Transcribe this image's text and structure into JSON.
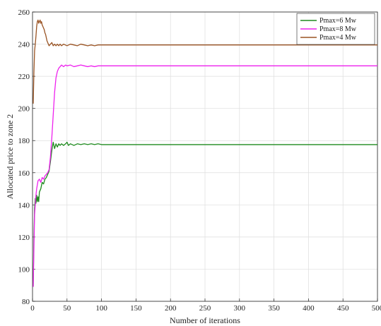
{
  "chart_data": {
    "type": "line",
    "title": "",
    "xlabel": "Number of iterations",
    "ylabel": "Allocated price to zone 2",
    "xlim": [
      0,
      500
    ],
    "ylim": [
      80,
      260
    ],
    "xticks": [
      "0",
      "50",
      "100",
      "150",
      "200",
      "250",
      "300",
      "350",
      "400",
      "450",
      "500"
    ],
    "yticks": [
      "80",
      "100",
      "120",
      "140",
      "160",
      "180",
      "200",
      "220",
      "240",
      "260"
    ],
    "grid": true,
    "legend_position": "top-right",
    "series": [
      {
        "name": "Pmax=6 Mw",
        "color": "#1e8a1e",
        "points": [
          [
            1,
            89
          ],
          [
            2,
            120
          ],
          [
            3,
            138
          ],
          [
            4,
            144
          ],
          [
            5,
            141
          ],
          [
            6,
            146
          ],
          [
            7,
            142
          ],
          [
            8,
            145
          ],
          [
            9,
            142
          ],
          [
            10,
            148
          ],
          [
            12,
            150
          ],
          [
            14,
            154
          ],
          [
            16,
            153
          ],
          [
            18,
            156
          ],
          [
            20,
            157
          ],
          [
            22,
            159
          ],
          [
            24,
            161
          ],
          [
            26,
            167
          ],
          [
            28,
            174
          ],
          [
            30,
            179
          ],
          [
            32,
            175
          ],
          [
            34,
            178
          ],
          [
            36,
            176
          ],
          [
            38,
            178
          ],
          [
            40,
            177
          ],
          [
            42,
            178
          ],
          [
            45,
            177
          ],
          [
            48,
            178
          ],
          [
            50,
            179
          ],
          [
            52,
            177
          ],
          [
            55,
            178
          ],
          [
            60,
            177
          ],
          [
            65,
            178
          ],
          [
            70,
            177.5
          ],
          [
            75,
            178
          ],
          [
            80,
            177.5
          ],
          [
            85,
            178
          ],
          [
            90,
            177.5
          ],
          [
            95,
            178
          ],
          [
            100,
            177.5
          ],
          [
            110,
            177.5
          ],
          [
            500,
            177.5
          ]
        ]
      },
      {
        "name": "Pmax=8 Mw",
        "color": "#ee22ee",
        "points": [
          [
            1,
            89
          ],
          [
            2,
            112
          ],
          [
            3,
            134
          ],
          [
            4,
            140
          ],
          [
            5,
            146
          ],
          [
            6,
            150
          ],
          [
            8,
            155
          ],
          [
            10,
            156
          ],
          [
            12,
            154
          ],
          [
            14,
            157
          ],
          [
            16,
            156
          ],
          [
            18,
            158
          ],
          [
            20,
            159
          ],
          [
            22,
            160
          ],
          [
            24,
            162
          ],
          [
            26,
            170
          ],
          [
            28,
            182
          ],
          [
            30,
            196
          ],
          [
            32,
            210
          ],
          [
            34,
            219
          ],
          [
            36,
            223
          ],
          [
            38,
            225
          ],
          [
            40,
            226
          ],
          [
            42,
            227
          ],
          [
            45,
            226
          ],
          [
            48,
            227
          ],
          [
            50,
            226.5
          ],
          [
            55,
            227
          ],
          [
            60,
            226
          ],
          [
            65,
            226.5
          ],
          [
            70,
            227
          ],
          [
            75,
            226.5
          ],
          [
            80,
            226
          ],
          [
            85,
            226.5
          ],
          [
            90,
            226
          ],
          [
            95,
            226.5
          ],
          [
            100,
            226.5
          ],
          [
            110,
            226.5
          ],
          [
            500,
            226.5
          ]
        ]
      },
      {
        "name": "Pmax=4 Mw",
        "color": "#9a5424",
        "points": [
          [
            1,
            203
          ],
          [
            2,
            222
          ],
          [
            3,
            236
          ],
          [
            4,
            240
          ],
          [
            5,
            245
          ],
          [
            6,
            251
          ],
          [
            7,
            254
          ],
          [
            8,
            255
          ],
          [
            9,
            253
          ],
          [
            10,
            254
          ],
          [
            11,
            255
          ],
          [
            12,
            253
          ],
          [
            13,
            254
          ],
          [
            14,
            252
          ],
          [
            15,
            251
          ],
          [
            16,
            250
          ],
          [
            17,
            249
          ],
          [
            18,
            247
          ],
          [
            19,
            246
          ],
          [
            20,
            244
          ],
          [
            21,
            242
          ],
          [
            22,
            241
          ],
          [
            23,
            240
          ],
          [
            24,
            239
          ],
          [
            26,
            240
          ],
          [
            28,
            241
          ],
          [
            30,
            239
          ],
          [
            32,
            240
          ],
          [
            34,
            239
          ],
          [
            36,
            240
          ],
          [
            38,
            239
          ],
          [
            40,
            240
          ],
          [
            42,
            239
          ],
          [
            45,
            240
          ],
          [
            50,
            239
          ],
          [
            55,
            240
          ],
          [
            60,
            239.5
          ],
          [
            65,
            239
          ],
          [
            70,
            240
          ],
          [
            75,
            239.5
          ],
          [
            80,
            239
          ],
          [
            85,
            239.5
          ],
          [
            90,
            239
          ],
          [
            95,
            239.5
          ],
          [
            100,
            239.5
          ],
          [
            500,
            239.5
          ]
        ]
      }
    ]
  }
}
